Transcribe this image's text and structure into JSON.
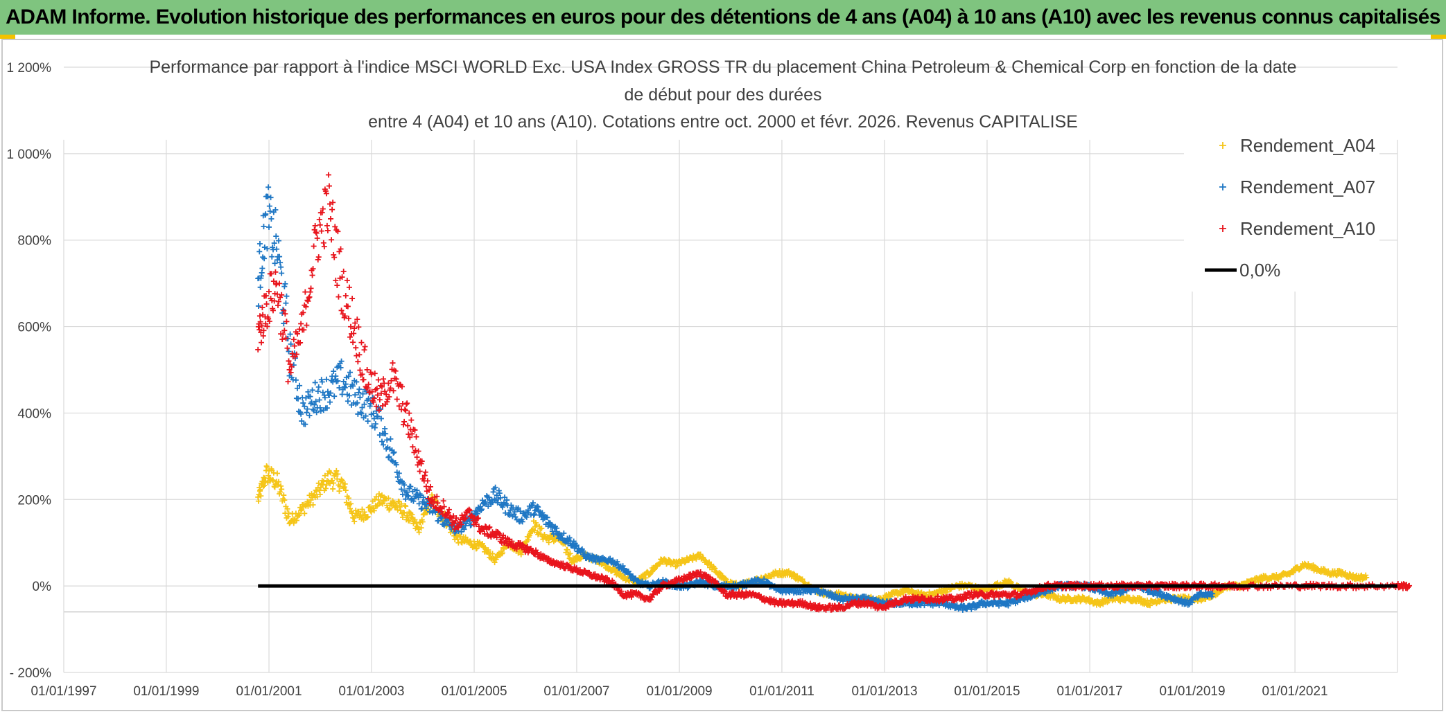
{
  "header": {
    "banner": "ADAM Informe. Evolution historique des performances en euros pour des détentions de 4 ans (A04) à 10 ans (A10) avec les revenus connus capitalisés"
  },
  "chart_data": {
    "type": "scatter",
    "title_lines": [
      "Performance par rapport à l'indice MSCI WORLD Exc. USA Index GROSS TR  du placement China Petroleum & Chemical Corp en fonction de la date",
      "de début pour des durées",
      "entre 4 (A04) et 10 ans (A10). Cotations entre oct. 2000 et févr. 2026. Revenus CAPITALISE"
    ],
    "xlabel": "",
    "ylabel": "",
    "x_ticks": [
      "01/01/1997",
      "01/01/1999",
      "01/01/2001",
      "01/01/2003",
      "01/01/2005",
      "01/01/2007",
      "01/01/2009",
      "01/01/2011",
      "01/01/2013",
      "01/01/2015",
      "01/01/2017",
      "01/01/2019",
      "01/01/2021"
    ],
    "xlim": [
      "1997-01-01",
      "2023-01-01"
    ],
    "y_ticks": [
      "- 200%",
      "0%",
      "200%",
      "400%",
      "600%",
      "800%",
      "1 000%",
      "1 200%"
    ],
    "ylim": [
      -200,
      1200
    ],
    "grid": true,
    "legend_position": "top-right",
    "colors": {
      "A04": "#f5c518",
      "A07": "#1f77c4",
      "A10": "#e8141c",
      "zero": "#000000"
    },
    "series": [
      {
        "name": "Rendement_A04",
        "key": "A04",
        "x": [
          "2000-10-15",
          "2000-12-15",
          "2001-03-01",
          "2001-06-01",
          "2001-09-01",
          "2001-12-01",
          "2002-03-01",
          "2002-06-01",
          "2002-09-01",
          "2002-12-01",
          "2003-03-01",
          "2003-06-01",
          "2003-09-01",
          "2003-12-01",
          "2004-03-01",
          "2004-06-01",
          "2004-09-01",
          "2004-12-01",
          "2005-03-01",
          "2005-06-01",
          "2005-09-01",
          "2005-12-01",
          "2006-03-01",
          "2006-06-01",
          "2006-09-01",
          "2006-12-01",
          "2007-03-01",
          "2007-06-01",
          "2007-09-01",
          "2007-12-01",
          "2008-03-01",
          "2008-06-01",
          "2008-09-01",
          "2008-12-01",
          "2009-03-01",
          "2009-06-01",
          "2009-09-01",
          "2009-12-01",
          "2010-03-01",
          "2010-06-01",
          "2010-09-01",
          "2010-12-01",
          "2011-03-01",
          "2011-06-01",
          "2011-09-01",
          "2011-12-01",
          "2012-03-01",
          "2012-06-01",
          "2012-09-01",
          "2012-12-01",
          "2013-03-01",
          "2013-06-01",
          "2013-09-01",
          "2013-12-01",
          "2014-03-01",
          "2014-06-01",
          "2014-09-01",
          "2014-12-01",
          "2015-03-01",
          "2015-06-01",
          "2015-09-01",
          "2015-12-01",
          "2016-03-01",
          "2016-06-01",
          "2016-09-01",
          "2016-12-01",
          "2017-03-01",
          "2017-06-01",
          "2017-09-01",
          "2017-12-01",
          "2018-03-01",
          "2018-06-01",
          "2018-09-01",
          "2018-12-01",
          "2019-03-01",
          "2019-06-01",
          "2019-09-01",
          "2019-12-01",
          "2020-03-01",
          "2020-06-01",
          "2020-09-01",
          "2020-12-01",
          "2021-03-01",
          "2021-06-01",
          "2021-09-01",
          "2021-12-01",
          "2022-03-01"
        ],
        "values": [
          200,
          260,
          240,
          150,
          180,
          210,
          250,
          240,
          160,
          170,
          200,
          190,
          170,
          130,
          200,
          160,
          110,
          100,
          90,
          60,
          100,
          80,
          140,
          110,
          110,
          60,
          70,
          60,
          40,
          20,
          10,
          30,
          60,
          50,
          60,
          70,
          40,
          10,
          0,
          10,
          20,
          30,
          30,
          10,
          -10,
          -20,
          -20,
          -30,
          -30,
          -30,
          -20,
          -10,
          -20,
          -20,
          -10,
          0,
          0,
          -10,
          0,
          10,
          -10,
          -20,
          -20,
          -30,
          -30,
          -30,
          -40,
          -30,
          -30,
          -30,
          -40,
          -30,
          -30,
          -30,
          -30,
          -20,
          0,
          0,
          10,
          20,
          20,
          30,
          50,
          40,
          30,
          30,
          20
        ]
      },
      {
        "name": "Rendement_A07",
        "key": "A07",
        "x": [
          "2000-10-15",
          "2000-12-15",
          "2001-03-01",
          "2001-06-01",
          "2001-09-01",
          "2001-12-01",
          "2002-03-01",
          "2002-06-01",
          "2002-09-01",
          "2002-12-01",
          "2003-03-01",
          "2003-06-01",
          "2003-09-01",
          "2003-12-01",
          "2004-03-01",
          "2004-06-01",
          "2004-09-01",
          "2004-12-01",
          "2005-03-01",
          "2005-06-01",
          "2005-09-01",
          "2005-12-01",
          "2006-03-01",
          "2006-06-01",
          "2006-09-01",
          "2006-12-01",
          "2007-03-01",
          "2007-06-01",
          "2007-09-01",
          "2007-12-01",
          "2008-03-01",
          "2008-06-01",
          "2008-09-01",
          "2008-12-01",
          "2009-03-01",
          "2009-06-01",
          "2009-09-01",
          "2009-12-01",
          "2010-03-01",
          "2010-06-01",
          "2010-09-01",
          "2010-12-01",
          "2011-03-01",
          "2011-06-01",
          "2011-09-01",
          "2011-12-01",
          "2012-03-01",
          "2012-06-01",
          "2012-09-01",
          "2012-12-01",
          "2013-03-01",
          "2013-06-01",
          "2013-09-01",
          "2013-12-01",
          "2014-03-01",
          "2014-06-01",
          "2014-09-01",
          "2014-12-01",
          "2015-03-01",
          "2015-06-01",
          "2015-09-01",
          "2015-12-01",
          "2016-03-01",
          "2016-06-01",
          "2016-09-01",
          "2016-12-01",
          "2017-03-01",
          "2017-06-01",
          "2017-09-01",
          "2017-12-01",
          "2018-03-01",
          "2018-06-01",
          "2018-09-01",
          "2018-12-01",
          "2019-03-01"
        ],
        "values": [
          700,
          860,
          780,
          540,
          400,
          440,
          450,
          480,
          440,
          420,
          380,
          300,
          220,
          200,
          180,
          150,
          130,
          150,
          190,
          210,
          180,
          160,
          180,
          150,
          120,
          100,
          70,
          60,
          60,
          40,
          10,
          0,
          10,
          0,
          0,
          10,
          0,
          0,
          0,
          10,
          10,
          -10,
          -10,
          -10,
          -10,
          -20,
          -30,
          -30,
          -30,
          -40,
          -40,
          -40,
          -40,
          -40,
          -40,
          -50,
          -50,
          -40,
          -40,
          -40,
          -30,
          -20,
          -10,
          0,
          0,
          0,
          -10,
          -20,
          -10,
          0,
          -10,
          -20,
          -30,
          -40,
          -20
        ]
      },
      {
        "name": "Rendement_A10",
        "key": "A10",
        "x": [
          "2000-10-15",
          "2000-12-15",
          "2001-03-01",
          "2001-06-01",
          "2001-09-01",
          "2001-12-01",
          "2002-03-01",
          "2002-06-01",
          "2002-09-01",
          "2002-12-01",
          "2003-03-01",
          "2003-06-01",
          "2003-09-01",
          "2003-12-01",
          "2004-03-01",
          "2004-06-01",
          "2004-09-01",
          "2004-12-01",
          "2005-03-01",
          "2005-06-01",
          "2005-09-01",
          "2005-12-01",
          "2006-03-01",
          "2006-06-01",
          "2006-09-01",
          "2006-12-01",
          "2007-03-01",
          "2007-06-01",
          "2007-09-01",
          "2007-12-01",
          "2008-03-01",
          "2008-06-01",
          "2008-09-01",
          "2008-12-01",
          "2009-03-01",
          "2009-06-01",
          "2009-09-01",
          "2009-12-01",
          "2010-03-01",
          "2010-06-01",
          "2010-09-01",
          "2010-12-01",
          "2011-03-01",
          "2011-06-01",
          "2011-09-01",
          "2011-12-01",
          "2012-03-01",
          "2012-06-01",
          "2012-09-01",
          "2012-12-01",
          "2013-03-01",
          "2013-06-01",
          "2013-09-01",
          "2013-12-01",
          "2014-03-01",
          "2014-06-01",
          "2014-09-01",
          "2014-12-01",
          "2015-03-01",
          "2015-06-01",
          "2015-09-01",
          "2015-12-01",
          "2016-03-01",
          "2016-06-01",
          "2016-09-01",
          "2016-12-01",
          "2017-03-01",
          "2017-06-01",
          "2017-09-01",
          "2017-12-01",
          "2018-03-01",
          "2018-06-01",
          "2018-09-01",
          "2018-12-01",
          "2019-03-01",
          "2019-06-01",
          "2019-09-01",
          "2019-12-01",
          "2020-06-01",
          "2020-12-01",
          "2021-06-01",
          "2021-12-01",
          "2022-06-01",
          "2022-12-31"
        ],
        "values": [
          580,
          650,
          700,
          500,
          600,
          800,
          880,
          700,
          600,
          480,
          430,
          480,
          400,
          300,
          200,
          180,
          140,
          170,
          130,
          120,
          100,
          90,
          80,
          60,
          50,
          40,
          30,
          20,
          10,
          -20,
          -20,
          -30,
          0,
          10,
          20,
          30,
          10,
          -20,
          -20,
          -20,
          -30,
          -40,
          -40,
          -40,
          -50,
          -50,
          -50,
          -40,
          -40,
          -50,
          -40,
          -30,
          -30,
          -30,
          -30,
          -30,
          -20,
          -20,
          -20,
          -20,
          -20,
          -10,
          0,
          0,
          0,
          0,
          0,
          0,
          0,
          0,
          0,
          0,
          0,
          0,
          0,
          0,
          0,
          0,
          0,
          0,
          0,
          0,
          0,
          0
        ]
      },
      {
        "name": "0,0%",
        "key": "zero",
        "x": [
          "2000-10-15",
          "2022-12-31"
        ],
        "values": [
          0,
          0
        ]
      }
    ]
  }
}
